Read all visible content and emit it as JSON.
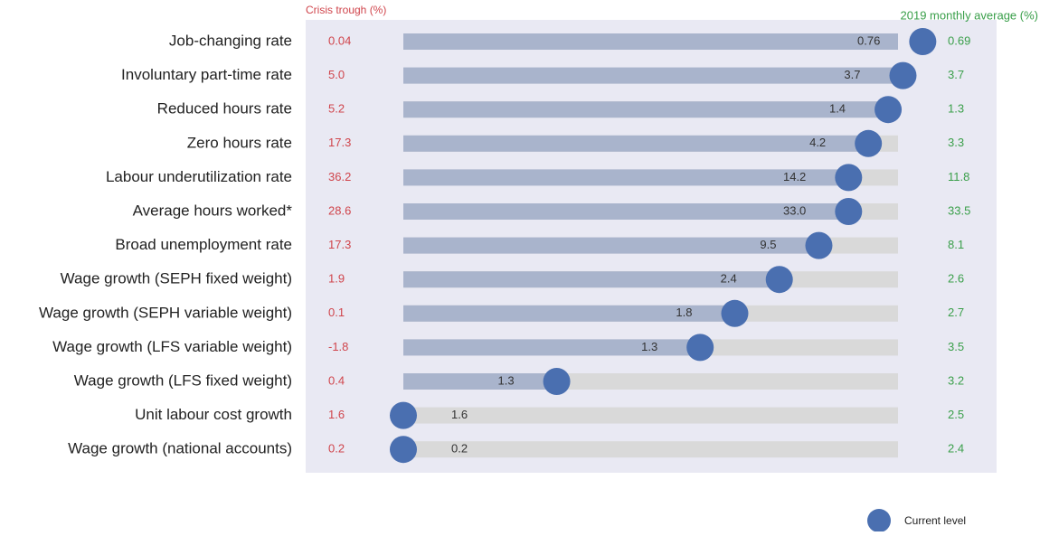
{
  "chart_data": {
    "type": "dot-progress",
    "categories": [
      "Job-changing rate",
      "Involuntary part-time rate",
      "Reduced hours rate",
      "Zero hours rate",
      "Labour underutilization rate",
      "Average hours worked*",
      "Broad unemployment rate",
      "Wage growth (SEPH fixed weight)",
      "Wage growth (SEPH variable weight)",
      "Wage growth (LFS variable weight)",
      "Wage growth (LFS fixed weight)",
      "Unit labour cost growth",
      "Wage growth (national accounts)"
    ],
    "trough_title": "Crisis trough (%)",
    "average_title": "2019 monthly average (%)",
    "trough": {
      "color": "#d0454c",
      "values": [
        0.04,
        5.0,
        5.2,
        17.3,
        36.2,
        28.6,
        17.3,
        1.9,
        0.1,
        -1.8,
        0.4,
        1.6,
        0.2
      ],
      "value_labels": [
        "0.04",
        "5.0",
        "5.2",
        "17.3",
        "36.2",
        "28.6",
        "17.3",
        "1.9",
        "0.1",
        "-1.8",
        "0.4",
        "1.6",
        "0.2"
      ]
    },
    "current": {
      "values": [
        0.76,
        3.7,
        1.4,
        4.2,
        14.2,
        33.0,
        9.5,
        2.4,
        1.8,
        1.3,
        1.3,
        1.6,
        0.2
      ],
      "value_labels": [
        "0.76",
        "3.7",
        "1.4",
        "4.2",
        "14.2",
        "33.0",
        "9.5",
        "2.4",
        "1.8",
        "1.3",
        "1.3",
        "1.6",
        "0.2"
      ]
    },
    "average": {
      "color": "#3a9f4a",
      "values": [
        0.69,
        3.7,
        1.3,
        3.3,
        11.8,
        33.5,
        8.1,
        2.6,
        2.7,
        3.5,
        3.2,
        2.5,
        2.4
      ],
      "value_labels": [
        "0.69",
        "3.7",
        "1.3",
        "3.3",
        "11.8",
        "33.5",
        "8.1",
        "2.6",
        "2.7",
        "3.5",
        "3.2",
        "2.5",
        "2.4"
      ]
    },
    "series": [
      {
        "name": "Current level",
        "color": "#4a6fb0",
        "values": [
          105,
          101,
          98,
          94,
          90,
          90,
          84,
          76,
          67,
          60,
          31,
          0,
          0
        ]
      }
    ],
    "xlim": [
      0,
      100
    ]
  }
}
